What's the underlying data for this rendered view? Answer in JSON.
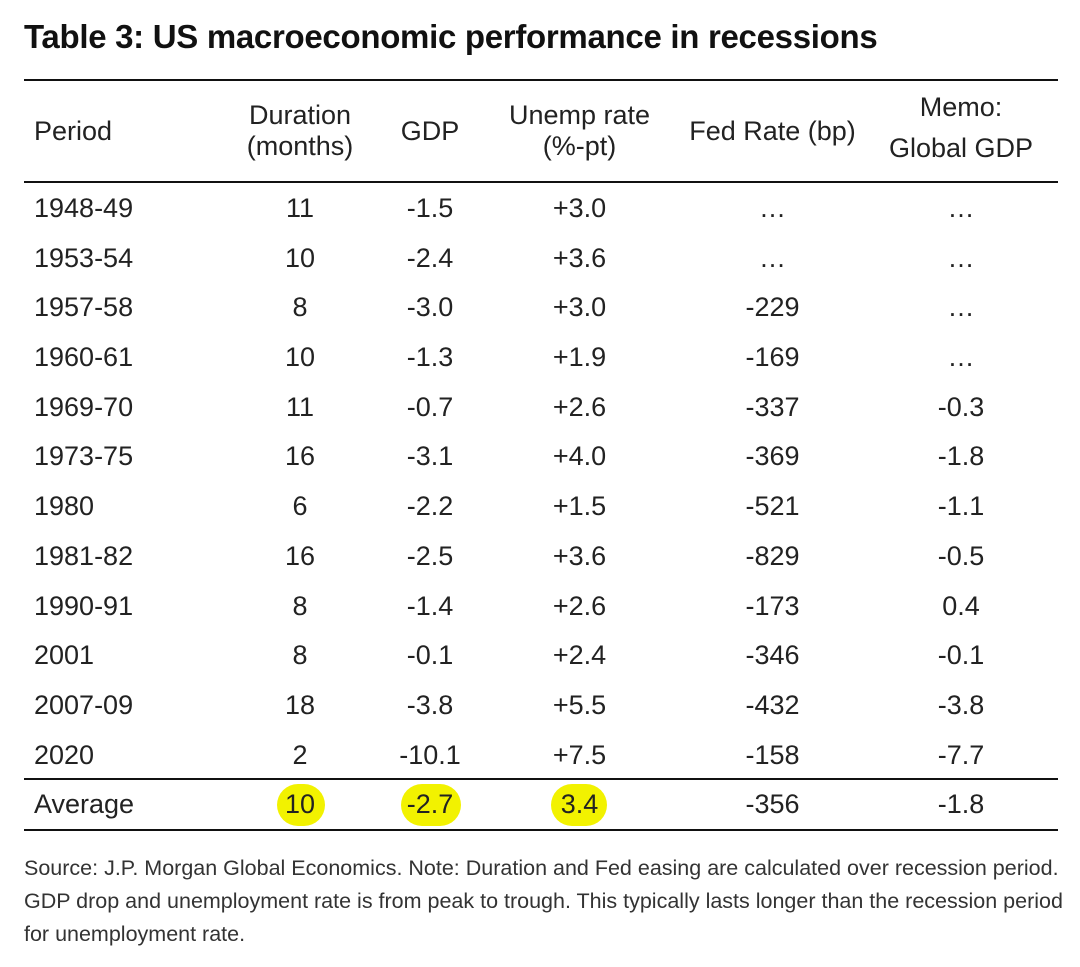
{
  "title": "Table 3: US macroeconomic performance in recessions",
  "headers": {
    "period": "Period",
    "duration_l1": "Duration",
    "duration_l2": "(months)",
    "gdp": "GDP",
    "unemp_l1": "Unemp rate",
    "unemp_l2": "(%-pt)",
    "fed": "Fed Rate (bp)",
    "memo_l1": "Memo:",
    "memo_l2": "Global GDP"
  },
  "rows": [
    {
      "period": "1948-49",
      "duration": "11",
      "gdp": "-1.5",
      "unemp": "+3.0",
      "fed": "…",
      "memo": "…"
    },
    {
      "period": "1953-54",
      "duration": "10",
      "gdp": "-2.4",
      "unemp": "+3.6",
      "fed": "…",
      "memo": "…"
    },
    {
      "period": "1957-58",
      "duration": "8",
      "gdp": "-3.0",
      "unemp": "+3.0",
      "fed": "-229",
      "memo": "…"
    },
    {
      "period": "1960-61",
      "duration": "10",
      "gdp": "-1.3",
      "unemp": "+1.9",
      "fed": "-169",
      "memo": "…"
    },
    {
      "period": "1969-70",
      "duration": "11",
      "gdp": "-0.7",
      "unemp": "+2.6",
      "fed": "-337",
      "memo": "-0.3"
    },
    {
      "period": "1973-75",
      "duration": "16",
      "gdp": "-3.1",
      "unemp": "+4.0",
      "fed": "-369",
      "memo": "-1.8"
    },
    {
      "period": "1980",
      "duration": "6",
      "gdp": "-2.2",
      "unemp": "+1.5",
      "fed": "-521",
      "memo": "-1.1"
    },
    {
      "period": "1981-82",
      "duration": "16",
      "gdp": "-2.5",
      "unemp": "+3.6",
      "fed": "-829",
      "memo": "-0.5"
    },
    {
      "period": "1990-91",
      "duration": "8",
      "gdp": "-1.4",
      "unemp": "+2.6",
      "fed": "-173",
      "memo": "0.4"
    },
    {
      "period": "2001",
      "duration": "8",
      "gdp": "-0.1",
      "unemp": "+2.4",
      "fed": "-346",
      "memo": "-0.1"
    },
    {
      "period": "2007-09",
      "duration": "18",
      "gdp": "-3.8",
      "unemp": "+5.5",
      "fed": "-432",
      "memo": "-3.8"
    },
    {
      "period": "2020",
      "duration": "2",
      "gdp": "-10.1",
      "unemp": "+7.5",
      "fed": "-158",
      "memo": "-7.7"
    }
  ],
  "average": {
    "period": "Average",
    "duration": "10",
    "gdp": "-2.7",
    "unemp": "3.4",
    "fed": "-356",
    "memo": "-1.8"
  },
  "highlight_color": "#f2f200",
  "source_note": "Source: J.P. Morgan Global Economics. Note: Duration and Fed easing are calculated over recession period. GDP drop and unemployment rate is from peak to trough. This typically lasts longer than the recession period for unemployment rate."
}
